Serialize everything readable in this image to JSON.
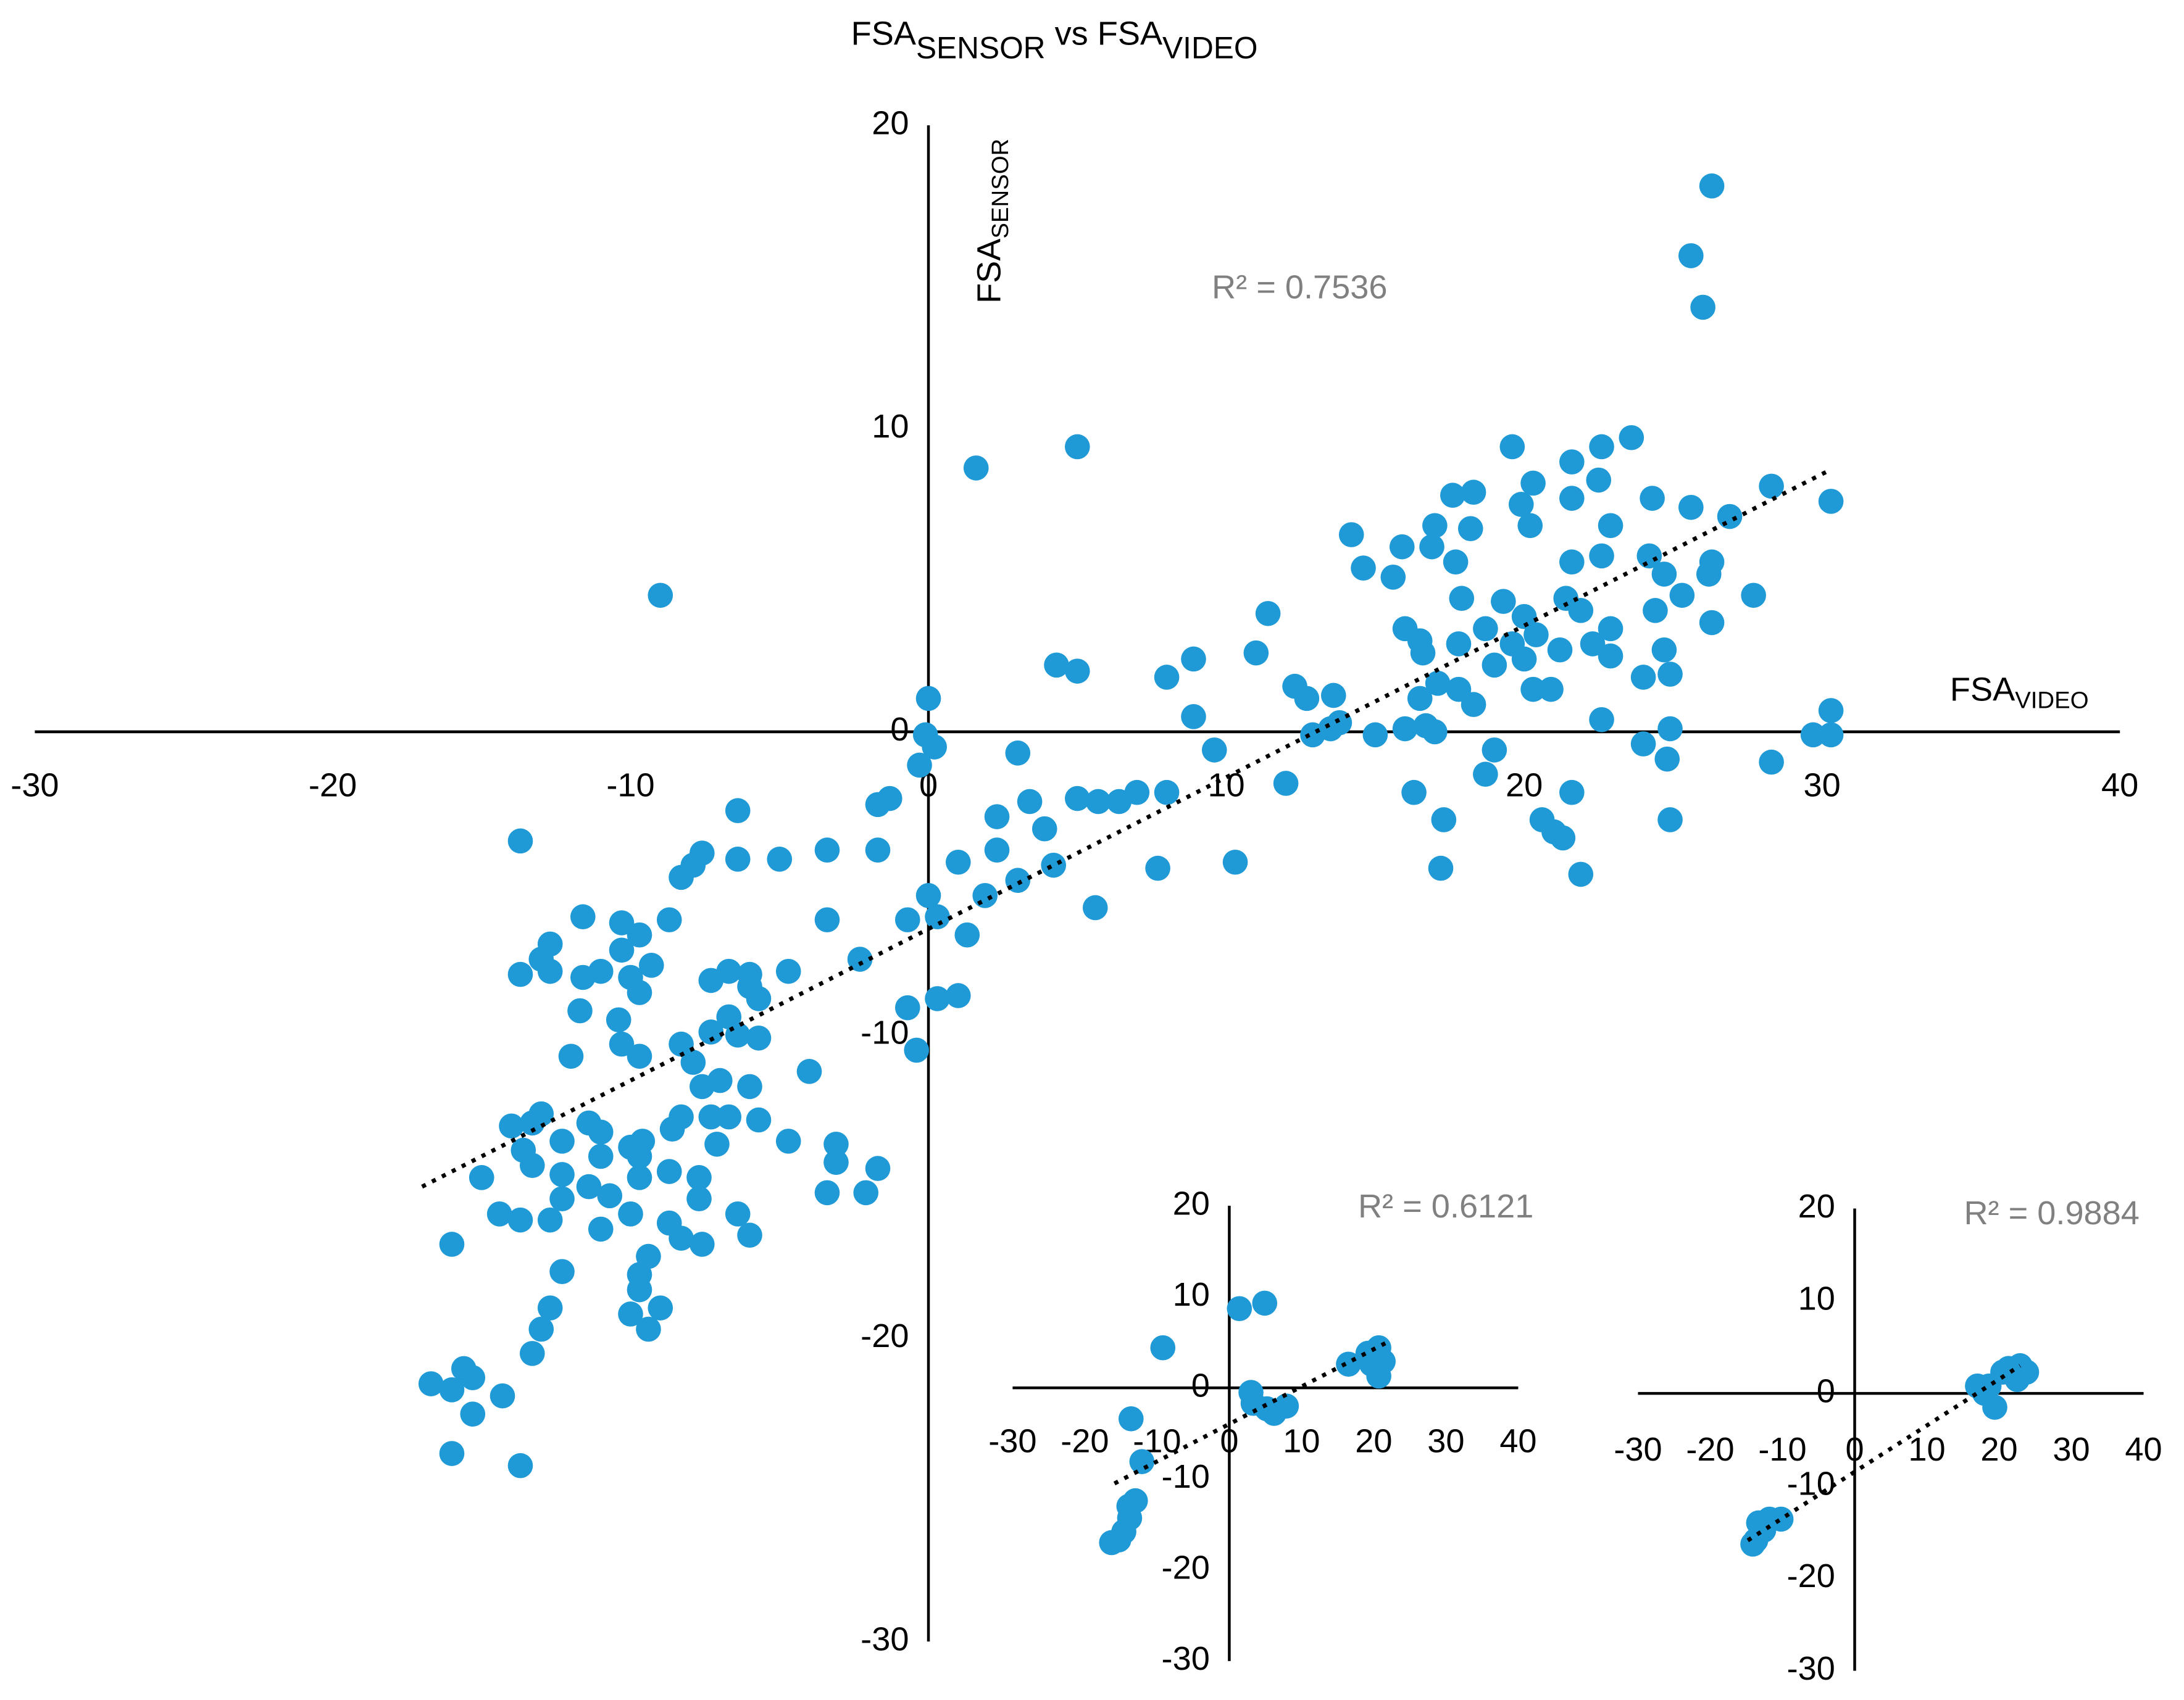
{
  "chart_data": [
    {
      "type": "scatter",
      "title": [
        {
          "text": "FSA"
        },
        {
          "text": "SENSOR",
          "sub": true
        },
        {
          "text": " vs "
        },
        {
          "text": "FSA"
        },
        {
          "text": "VIDEO",
          "sub": true
        }
      ],
      "x_label": [
        {
          "text": "FSA"
        },
        {
          "text": "VIDEO",
          "sub": true
        }
      ],
      "y_label": [
        {
          "text": "FSA"
        },
        {
          "text": "SENSOR",
          "sub": true
        }
      ],
      "annotation": "R² = 0.7536",
      "color": "#1f9ad6",
      "xlim": [
        -30,
        40
      ],
      "ylim": [
        -30,
        20
      ],
      "xticks": [
        -30,
        -20,
        -10,
        0,
        10,
        20,
        30,
        40
      ],
      "yticks": [
        -30,
        -20,
        -10,
        0,
        10,
        20
      ],
      "trendline": {
        "x": [
          -17,
          30.2
        ],
        "y": [
          -15,
          8.6
        ]
      },
      "x": [
        26.3,
        25.6,
        26.0,
        1.6,
        5.0,
        -9.0,
        19.6,
        23.6,
        22.6,
        21.6,
        20.3,
        17.6,
        18.3,
        22.5,
        24.3,
        25.6,
        26.9,
        28.3,
        30.3,
        21.6,
        19.9,
        20.2,
        17.0,
        18.2,
        22.9,
        14.2,
        15.9,
        16.9,
        17.7,
        21.6,
        22.6,
        24.2,
        26.3,
        26.2,
        14.6,
        15.6,
        24.7,
        27.7,
        25.3,
        17.9,
        19.3,
        21.4,
        24.4,
        21.9,
        20.0,
        26.3,
        16.0,
        18.7,
        20.4,
        22.9,
        16.5,
        17.8,
        19.6,
        22.3,
        21.2,
        24.7,
        16.6,
        20.0,
        22.9,
        19.0,
        24.0,
        24.9,
        20.3,
        20.9,
        17.8,
        17.1,
        16.5,
        18.3,
        22.6,
        16.7,
        17.0,
        16.0,
        24.9,
        29.7,
        30.3,
        30.3,
        24.0,
        24.8,
        28.3,
        19.0,
        18.7,
        16.3,
        17.3,
        20.6,
        21.0,
        21.6,
        21.3,
        21.9,
        24.9,
        17.2,
        11.4,
        11.0,
        8.9,
        5.0,
        4.3,
        8.0,
        12.3,
        12.7,
        13.6,
        8.9,
        12.9,
        13.5,
        13.8,
        15.0,
        9.6,
        12.0,
        0.0,
        -0.1,
        0.2,
        -0.3,
        3.0,
        -1.3,
        -1.7,
        3.4,
        2.3,
        5.0,
        5.7,
        6.4,
        7.0,
        8.0,
        3.9,
        2.3,
        1.0,
        4.2,
        7.7,
        10.3,
        3.0,
        1.9,
        5.6,
        0.0,
        -0.7,
        0.3,
        1.3,
        -3.4,
        -1.7,
        -5.0,
        -6.4,
        -6.4,
        -3.4,
        -2.3,
        1.0,
        0.3,
        -0.7,
        -0.4,
        -4.0,
        -4.7,
        -6.0,
        -4.7,
        -3.1,
        -3.1,
        -1.7,
        -3.4,
        -2.1,
        -6.0,
        -6.4,
        -13.7,
        -11.6,
        -10.3,
        -9.7,
        -8.7,
        -12.7,
        -13.0,
        -13.7,
        -10.3,
        -9.3,
        -11.6,
        -11.0,
        -12.7,
        -11.7,
        -10.0,
        -9.7,
        -8.3,
        -7.9,
        -7.6,
        -7.3,
        -6.7,
        -6.0,
        -5.7,
        -6.7,
        -7.3,
        -6.4,
        -5.7,
        -10.4,
        -10.3,
        -9.7,
        -12.0,
        -8.3,
        -7.9,
        -7.6,
        -7.0,
        -6.0,
        -8.3,
        -7.3,
        -6.7,
        -5.7,
        -8.6,
        -9.6,
        -11.0,
        -11.4,
        -13.0,
        -13.3,
        -14.0,
        -12.3,
        -13.6,
        -13.3,
        -11.0,
        -10.0,
        -9.7,
        -7.1,
        -15.0,
        -12.3,
        -11.4,
        -10.7,
        -9.7,
        -8.7,
        -7.7,
        -7.7,
        -12.3,
        -14.4,
        -13.7,
        -12.7,
        -10.0,
        -8.7,
        -11.0,
        -8.3,
        -7.6,
        -16.0,
        -12.3,
        -9.4,
        -9.7,
        -9.7,
        -12.7,
        -10.0,
        -9.0,
        -9.4,
        -13.0,
        -13.3,
        -16.7,
        -16.0,
        -15.6,
        -15.3,
        -14.3,
        -15.3,
        -16.0,
        -13.7
      ],
      "y": [
        18.0,
        15.7,
        14.0,
        8.7,
        9.4,
        4.5,
        9.4,
        9.7,
        9.4,
        8.9,
        8.2,
        7.8,
        7.9,
        8.3,
        7.7,
        7.4,
        7.1,
        8.1,
        7.6,
        7.7,
        7.5,
        6.8,
        6.8,
        6.7,
        6.8,
        6.5,
        6.1,
        6.1,
        5.6,
        5.6,
        5.8,
        5.8,
        5.6,
        5.2,
        5.4,
        5.1,
        5.2,
        4.5,
        4.5,
        4.4,
        4.3,
        4.4,
        4.0,
        4.0,
        3.8,
        3.6,
        3.4,
        3.4,
        3.2,
        3.4,
        3.0,
        2.9,
        2.9,
        2.9,
        2.7,
        2.7,
        2.6,
        2.4,
        2.5,
        2.2,
        1.8,
        1.9,
        1.4,
        1.4,
        1.4,
        1.6,
        1.1,
        0.9,
        0.4,
        0.2,
        0.0,
        0.1,
        0.1,
        -0.1,
        0.7,
        -0.1,
        -0.4,
        -0.9,
        -1.0,
        -0.6,
        -1.4,
        -2.0,
        -2.9,
        -2.9,
        -3.3,
        -2.0,
        -3.5,
        -4.7,
        -2.9,
        -4.5,
        3.9,
        2.6,
        2.4,
        2.0,
        2.2,
        1.8,
        1.5,
        1.1,
        1.2,
        0.5,
        -0.1,
        0.1,
        0.3,
        -0.1,
        -0.6,
        -1.7,
        1.1,
        -0.1,
        -0.5,
        -1.1,
        -0.7,
        -2.2,
        -2.4,
        -2.3,
        -2.8,
        -2.2,
        -2.3,
        -2.3,
        -2.0,
        -2.0,
        -3.2,
        -3.9,
        -4.3,
        -4.4,
        -4.5,
        -4.3,
        -4.9,
        -5.4,
        -5.8,
        -5.4,
        -6.2,
        -6.1,
        -6.7,
        -3.9,
        -3.9,
        -4.2,
        -2.6,
        -4.2,
        -6.2,
        -7.5,
        -8.7,
        -8.8,
        -9.1,
        -10.5,
        -11.2,
        -7.9,
        -8.0,
        -13.5,
        -13.6,
        -14.2,
        -14.4,
        -15.2,
        -15.2,
        -16.6,
        -15.9,
        -3.6,
        -6.1,
        -6.3,
        -6.7,
        -6.2,
        -7.0,
        -7.5,
        -8.0,
        -7.2,
        -7.7,
        -8.1,
        -7.9,
        -7.9,
        -9.2,
        -8.1,
        -8.6,
        -4.8,
        -4.4,
        -4.0,
        -8.2,
        -7.9,
        -8.4,
        -8.8,
        -9.4,
        -9.9,
        -10.0,
        -10.1,
        -9.5,
        -10.3,
        -10.7,
        -10.7,
        -10.3,
        -10.9,
        -11.7,
        -11.5,
        -11.7,
        -12.7,
        -12.7,
        -12.7,
        -12.8,
        -13.1,
        -13.5,
        -13.2,
        -12.9,
        -12.6,
        -12.9,
        -13.0,
        -13.5,
        -13.8,
        -14.3,
        -14.0,
        -13.7,
        -14.0,
        -13.6,
        -14.7,
        -14.6,
        -15.0,
        -15.3,
        -14.7,
        -14.5,
        -14.7,
        -15.4,
        -15.4,
        -15.9,
        -16.1,
        -16.1,
        -15.9,
        -16.2,
        -16.4,
        -16.7,
        -16.9,
        -16.9,
        -17.8,
        -17.3,
        -17.9,
        -18.4,
        -19.0,
        -19.2,
        -19.0,
        -19.7,
        -19.7,
        -20.5,
        -21.5,
        -21.7,
        -21.0,
        -21.3,
        -21.9,
        -22.5,
        -23.8,
        -24.2
      ]
    },
    {
      "type": "scatter",
      "annotation": "R² = 0.6121",
      "color": "#1f9ad6",
      "xlim": [
        -30,
        40
      ],
      "ylim": [
        -30,
        20
      ],
      "xticks": [
        -30,
        -20,
        -10,
        0,
        10,
        20,
        30,
        40
      ],
      "yticks": [
        -30,
        -20,
        -10,
        0,
        10,
        20
      ],
      "trendline": {
        "x": [
          -15.9,
          21.6
        ],
        "y": [
          -10.5,
          4.9
        ]
      },
      "x": [
        1.4,
        4.9,
        -9.2,
        3.0,
        3.3,
        5.2,
        7.9,
        6.2,
        16.5,
        19.2,
        20.7,
        21.3,
        20.7,
        19.7,
        -13.6,
        -12.1,
        -13.0,
        -13.8,
        -14.6,
        -15.3,
        -16.3,
        -13.9
      ],
      "y": [
        8.7,
        9.3,
        4.4,
        -0.5,
        -1.7,
        -2.3,
        -2.0,
        -2.8,
        2.6,
        3.8,
        4.4,
        2.9,
        1.3,
        2.6,
        -3.4,
        -8.1,
        -12.4,
        -14.3,
        -15.8,
        -16.7,
        -17.0,
        -13.0
      ]
    },
    {
      "type": "scatter",
      "annotation": "R² = 0.9884",
      "color": "#1f9ad6",
      "xlim": [
        -30,
        40
      ],
      "ylim": [
        -30,
        20
      ],
      "xticks": [
        -30,
        -20,
        -10,
        0,
        10,
        20,
        30,
        40
      ],
      "yticks": [
        -30,
        -20,
        -10,
        0,
        10,
        20
      ],
      "trendline": {
        "x": [
          -14.8,
          22.9
        ],
        "y": [
          -15.9,
          3.0
        ]
      },
      "x": [
        17.0,
        18.6,
        18.0,
        19.4,
        20.5,
        21.3,
        22.9,
        23.8,
        22.5,
        -13.3,
        -11.8,
        -10.2,
        -13.7,
        -14.1,
        -12.6
      ],
      "y": [
        0.8,
        0.8,
        0,
        -1.5,
        2.3,
        2.7,
        3.0,
        2.3,
        1.5,
        -14.0,
        -13.6,
        -13.6,
        -15.9,
        -16.3,
        -14.8
      ]
    }
  ]
}
